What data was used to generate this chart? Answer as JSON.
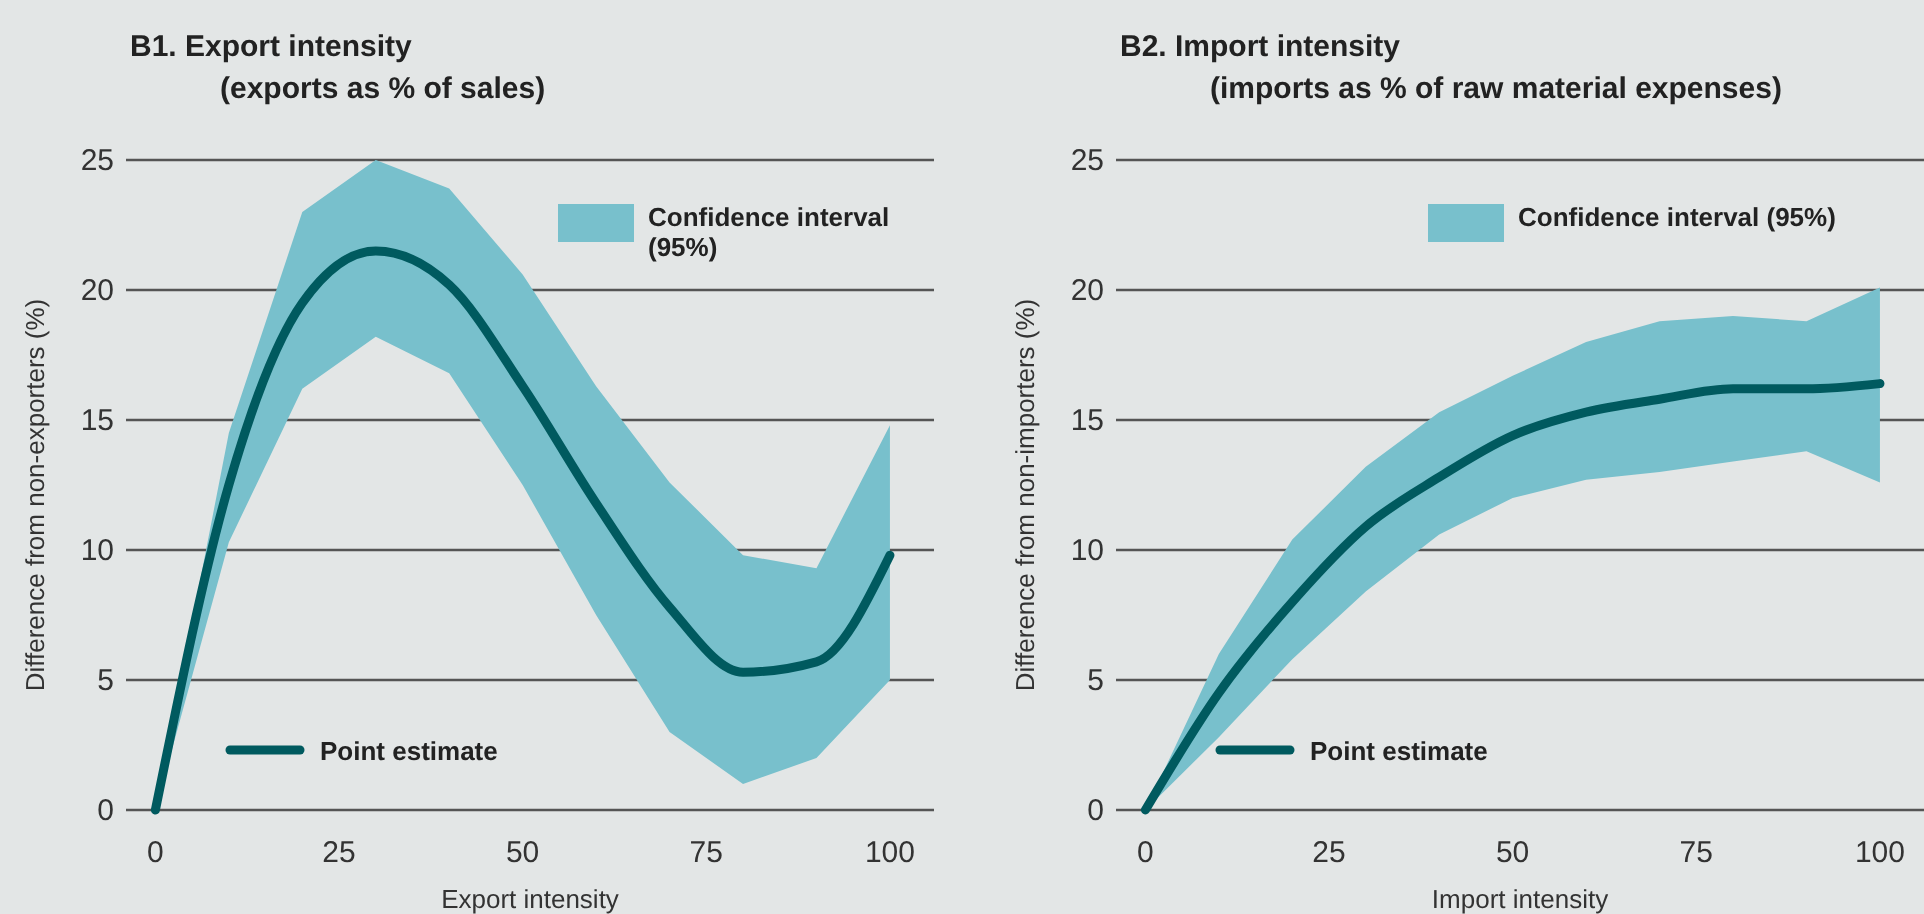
{
  "chart_data": [
    {
      "type": "line",
      "title": "B1.  Export intensity",
      "subtitle": "(exports as % of sales)",
      "xlabel": "Export intensity",
      "ylabel": "Difference from non-exporters (%)",
      "annotations": [
        "Confidence interval (95%)"
      ],
      "x": [
        0,
        10,
        20,
        30,
        40,
        50,
        60,
        70,
        80,
        90,
        100
      ],
      "xlim": [
        -4,
        106
      ],
      "xticks": [
        0,
        25,
        50,
        75,
        100
      ],
      "ylim": [
        0,
        25
      ],
      "yticks": [
        0,
        5,
        10,
        15,
        20,
        25
      ],
      "grid": "y",
      "legend": "bottom left",
      "series": [
        {
          "name": "Point estimate",
          "color": "#005a5f",
          "values": [
            0,
            12.5,
            19.5,
            21.5,
            20.2,
            16.3,
            11.8,
            7.8,
            5.3,
            5.7,
            9.8
          ],
          "lower": [
            0,
            10.3,
            16.2,
            18.2,
            16.8,
            12.5,
            7.5,
            3.0,
            1.0,
            2.0,
            5.0
          ],
          "upper": [
            0,
            14.5,
            23.0,
            25.0,
            23.9,
            20.6,
            16.3,
            12.6,
            9.8,
            9.3,
            14.8
          ]
        }
      ]
    },
    {
      "type": "line",
      "title": "B2.  Import intensity",
      "subtitle": "(imports as % of raw material expenses)",
      "xlabel": "Import intensity",
      "ylabel": "Difference from non-importers (%)",
      "annotations": [
        "Confidence interval (95%)"
      ],
      "x": [
        0,
        10,
        20,
        30,
        40,
        50,
        60,
        70,
        80,
        90,
        100
      ],
      "xlim": [
        -4,
        106
      ],
      "xticks": [
        0,
        25,
        50,
        75,
        100
      ],
      "ylim": [
        0,
        25
      ],
      "yticks": [
        0,
        5,
        10,
        15,
        20,
        25
      ],
      "grid": "y",
      "legend": "bottom left",
      "series": [
        {
          "name": "Point estimate",
          "color": "#005a5f",
          "values": [
            0,
            4.5,
            8.0,
            10.9,
            12.8,
            14.4,
            15.3,
            15.8,
            16.2,
            16.2,
            16.4
          ],
          "lower": [
            0,
            2.8,
            5.8,
            8.4,
            10.6,
            12.0,
            12.7,
            13.0,
            13.4,
            13.8,
            12.6
          ],
          "upper": [
            0,
            6.0,
            10.4,
            13.2,
            15.3,
            16.7,
            18.0,
            18.8,
            19.0,
            18.8,
            20.1
          ]
        }
      ]
    }
  ]
}
